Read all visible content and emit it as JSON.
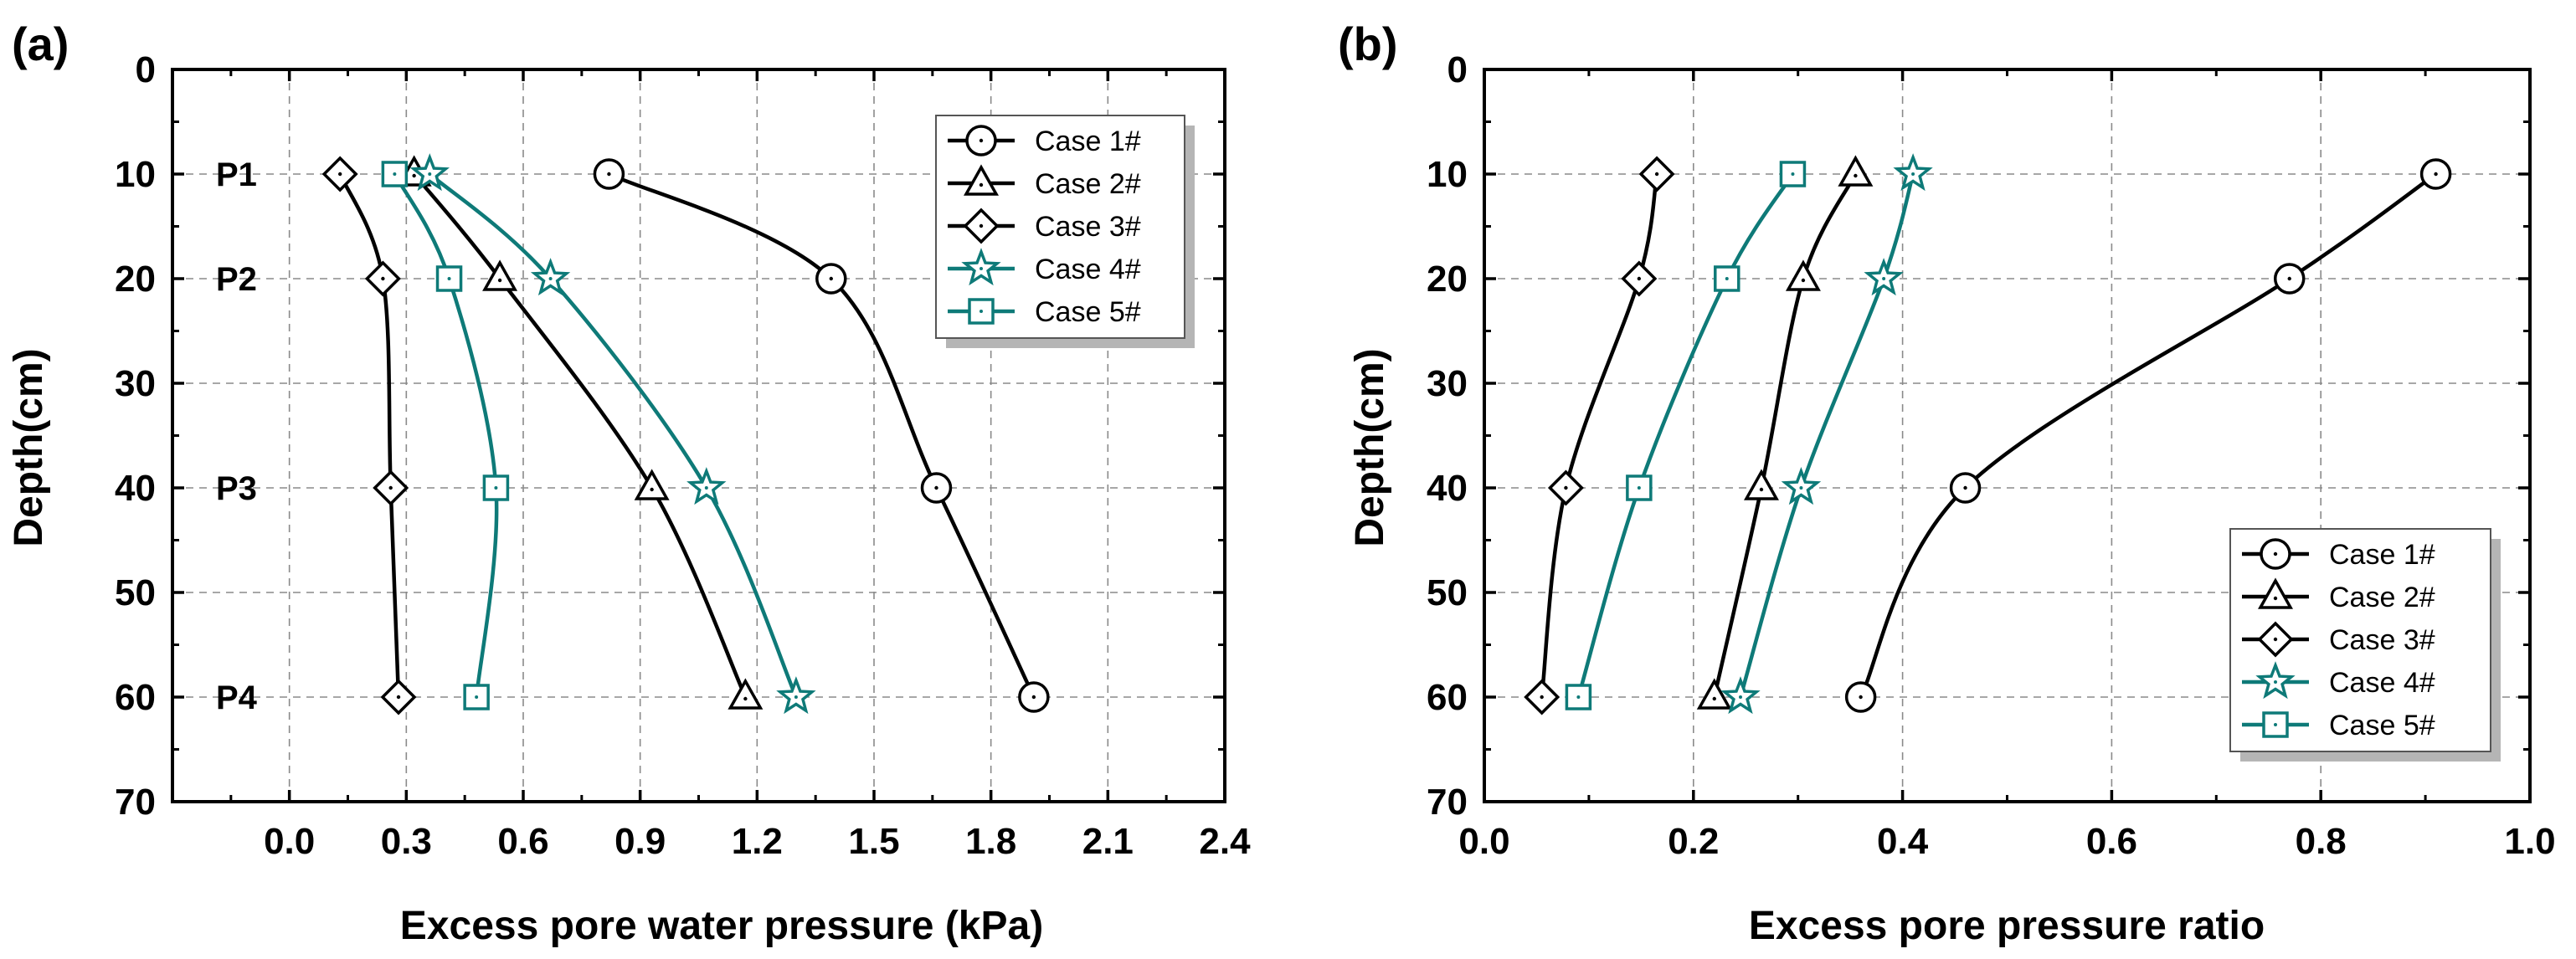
{
  "chart_data": [
    {
      "type": "line",
      "panel_label": "(a)",
      "xlabel": "Excess pore water pressure (kPa)",
      "ylabel": "Depth(cm)",
      "xlim": [
        -0.3,
        2.4
      ],
      "ylim": [
        0,
        70
      ],
      "y_inverted": true,
      "x_axis_position": "top-and-bottom",
      "grid": true,
      "xticks": [
        "0.0",
        "0.3",
        "0.6",
        "0.9",
        "1.2",
        "1.5",
        "1.8",
        "2.1",
        "2.4"
      ],
      "yticks": [
        "0",
        "10",
        "20",
        "30",
        "40",
        "50",
        "60",
        "70"
      ],
      "legend_position": "top-right",
      "annotations": [
        {
          "text": "P1",
          "y": 10
        },
        {
          "text": "P2",
          "y": 20
        },
        {
          "text": "P3",
          "y": 40
        },
        {
          "text": "P4",
          "y": 60
        }
      ],
      "series": [
        {
          "name": "Case 1#",
          "marker": "circle",
          "color": "#000000",
          "x": [
            0.82,
            1.39,
            1.66,
            1.91
          ],
          "y": [
            10,
            20,
            40,
            60
          ]
        },
        {
          "name": "Case 2#",
          "marker": "triangle",
          "color": "#000000",
          "x": [
            0.32,
            0.54,
            0.93,
            1.17
          ],
          "y": [
            10,
            20,
            40,
            60
          ]
        },
        {
          "name": "Case 3#",
          "marker": "diamond",
          "color": "#000000",
          "x": [
            0.13,
            0.24,
            0.26,
            0.28
          ],
          "y": [
            10,
            20,
            40,
            60
          ]
        },
        {
          "name": "Case 4#",
          "marker": "star",
          "color": "#0e7a78",
          "x": [
            0.36,
            0.67,
            1.07,
            1.3
          ],
          "y": [
            10,
            20,
            40,
            60
          ]
        },
        {
          "name": "Case 5#",
          "marker": "square",
          "color": "#0e7a78",
          "x": [
            0.27,
            0.41,
            0.53,
            0.48
          ],
          "y": [
            10,
            20,
            40,
            60
          ]
        }
      ]
    },
    {
      "type": "line",
      "panel_label": "(b)",
      "xlabel": "Excess pore pressure ratio",
      "ylabel": "Depth(cm)",
      "xlim": [
        0.0,
        1.0
      ],
      "ylim": [
        0,
        70
      ],
      "y_inverted": true,
      "x_axis_position": "top-and-bottom",
      "grid": true,
      "xticks": [
        "0.0",
        "0.2",
        "0.4",
        "0.6",
        "0.8",
        "1.0"
      ],
      "yticks": [
        "0",
        "10",
        "20",
        "30",
        "40",
        "50",
        "60",
        "70"
      ],
      "legend_position": "bottom-right",
      "annotations": [],
      "series": [
        {
          "name": "Case 1#",
          "marker": "circle",
          "color": "#000000",
          "x": [
            0.91,
            0.77,
            0.46,
            0.36
          ],
          "y": [
            10,
            20,
            40,
            60
          ]
        },
        {
          "name": "Case 2#",
          "marker": "triangle",
          "color": "#000000",
          "x": [
            0.355,
            0.305,
            0.265,
            0.22
          ],
          "y": [
            10,
            20,
            40,
            60
          ]
        },
        {
          "name": "Case 3#",
          "marker": "diamond",
          "color": "#000000",
          "x": [
            0.165,
            0.148,
            0.078,
            0.055
          ],
          "y": [
            10,
            20,
            40,
            60
          ]
        },
        {
          "name": "Case 4#",
          "marker": "star",
          "color": "#0e7a78",
          "x": [
            0.41,
            0.382,
            0.303,
            0.245
          ],
          "y": [
            10,
            20,
            40,
            60
          ]
        },
        {
          "name": "Case 5#",
          "marker": "square",
          "color": "#0e7a78",
          "x": [
            0.295,
            0.232,
            0.148,
            0.09
          ],
          "y": [
            10,
            20,
            40,
            60
          ]
        }
      ]
    }
  ]
}
